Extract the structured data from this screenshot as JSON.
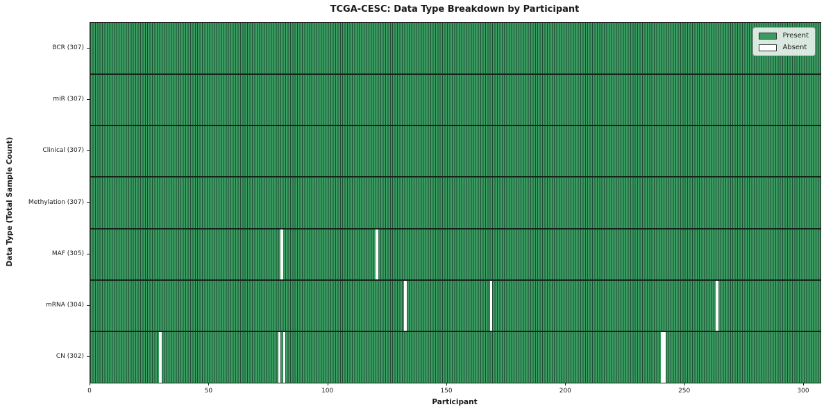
{
  "chart_data": {
    "type": "heatmap",
    "title": "TCGA-CESC: Data Type Breakdown by Participant",
    "xlabel": "Participant",
    "ylabel": "Data Type (Total Sample Count)",
    "n_participants": 307,
    "xlim": [
      0,
      307
    ],
    "x_ticks": [
      0,
      50,
      100,
      150,
      200,
      250,
      300
    ],
    "rows": [
      {
        "label": "BCR (307)",
        "total": 307,
        "absent_participants": []
      },
      {
        "label": "miR (307)",
        "total": 307,
        "absent_participants": []
      },
      {
        "label": "Clinical (307)",
        "total": 307,
        "absent_participants": []
      },
      {
        "label": "Methylation (307)",
        "total": 307,
        "absent_participants": []
      },
      {
        "label": "MAF (305)",
        "total": 305,
        "absent_participants": [
          80,
          120
        ]
      },
      {
        "label": "mRNA (304)",
        "total": 304,
        "absent_participants": [
          132,
          168,
          263
        ]
      },
      {
        "label": "CN (302)",
        "total": 302,
        "absent_participants": [
          29,
          79,
          81,
          240,
          241
        ]
      }
    ],
    "legend": [
      {
        "label": "Present",
        "color": "#3b9c62"
      },
      {
        "label": "Absent",
        "color": "#ffffff"
      }
    ],
    "colors": {
      "present": "#3b9c62",
      "absent": "#ffffff",
      "bar_edge": "#1f4a33",
      "row_separator": "#13261a",
      "spine": "#1a1a1a",
      "legend_border": "#9a9a9a"
    },
    "grid": false,
    "legend_position": "upper right"
  }
}
